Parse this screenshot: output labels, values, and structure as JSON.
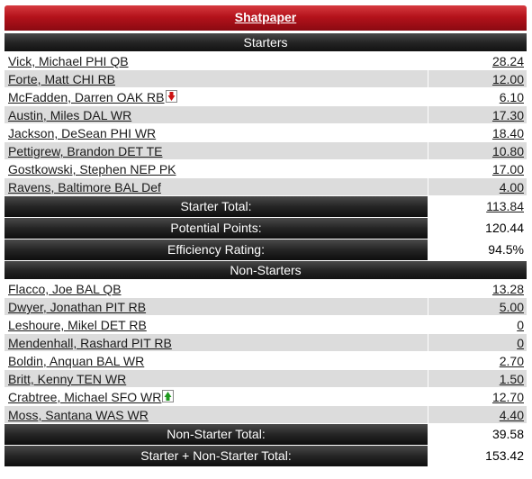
{
  "team": {
    "name": "Shatpaper"
  },
  "starters": {
    "header": "Starters",
    "players": [
      {
        "name": "Vick, Michael PHI QB",
        "points": "28.24"
      },
      {
        "name": "Forte, Matt CHI RB",
        "points": "12.00"
      },
      {
        "name": "McFadden, Darren OAK RB",
        "points": "6.10",
        "trend": "down",
        "trend_icon": "red-down-arrow-icon"
      },
      {
        "name": "Austin, Miles DAL WR",
        "points": "17.30"
      },
      {
        "name": "Jackson, DeSean PHI WR",
        "points": "18.40"
      },
      {
        "name": "Pettigrew, Brandon DET TE",
        "points": "10.80"
      },
      {
        "name": "Gostkowski, Stephen NEP PK",
        "points": "17.00"
      },
      {
        "name": "Ravens, Baltimore BAL Def",
        "points": "4.00"
      }
    ],
    "total_label": "Starter Total:",
    "total_value": "113.84",
    "potential_label": "Potential Points:",
    "potential_value": "120.44",
    "efficiency_label": "Efficiency Rating:",
    "efficiency_value": "94.5%"
  },
  "non_starters": {
    "header": "Non-Starters",
    "players": [
      {
        "name": "Flacco, Joe BAL QB",
        "points": "13.28"
      },
      {
        "name": "Dwyer, Jonathan PIT RB",
        "points": "5.00"
      },
      {
        "name": "Leshoure, Mikel DET RB",
        "points": "0"
      },
      {
        "name": "Mendenhall, Rashard PIT RB",
        "points": "0"
      },
      {
        "name": "Boldin, Anquan BAL WR",
        "points": "2.70"
      },
      {
        "name": "Britt, Kenny TEN WR",
        "points": "1.50"
      },
      {
        "name": "Crabtree, Michael SFO WR",
        "points": "12.70",
        "trend": "up",
        "trend_icon": "green-up-arrow-icon"
      },
      {
        "name": "Moss, Santana WAS WR",
        "points": "4.40"
      }
    ],
    "total_label": "Non-Starter Total:",
    "total_value": "39.58",
    "combined_label": "Starter + Non-Starter Total:",
    "combined_value": "153.42"
  },
  "colors": {
    "header_red": "#b4121b",
    "section_dark": "#252525",
    "row_alt": "#dcdcdc",
    "arrow_down": "#cc1111",
    "arrow_up": "#1f9a1f"
  }
}
